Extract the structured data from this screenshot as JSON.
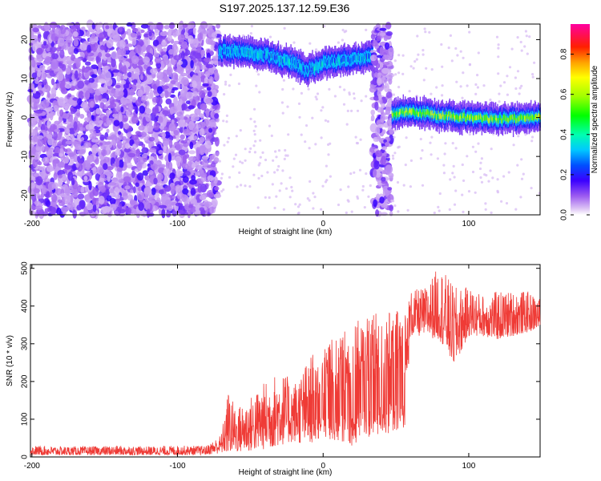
{
  "title": "S197.2025.137.12.59.E36",
  "chart_data": [
    {
      "type": "heatmap",
      "xlabel": "Height of straight line (km)",
      "ylabel": "Frequency (Hz)",
      "xlim": [
        -201,
        149
      ],
      "ylim": [
        -25,
        24
      ],
      "xticks": [
        -200,
        -100,
        0,
        100
      ],
      "yticks": [
        -20,
        -10,
        0,
        10,
        20
      ],
      "colorbar": {
        "label": "Normalized spectral amplitude",
        "range": [
          0,
          0.95
        ],
        "ticks": [
          0.0,
          0.2,
          0.4,
          0.6,
          0.8
        ]
      },
      "regions": [
        {
          "x": [
            -201,
            -72
          ],
          "description_value": "noise",
          "amplitude": 0.05
        },
        {
          "x": [
            -72,
            34
          ],
          "frequency_track": [
            [
              -72,
              17
            ],
            [
              -60,
              17
            ],
            [
              -40,
              16
            ],
            [
              -20,
              14
            ],
            [
              -12,
              12
            ],
            [
              0,
              14
            ],
            [
              20,
              15
            ],
            [
              35,
              16
            ]
          ],
          "amplitude": 0.3
        },
        {
          "x": [
            34,
            47
          ],
          "description_value": "noise",
          "amplitude": 0.05
        },
        {
          "x": [
            47,
            149
          ],
          "frequency_track": [
            [
              47,
              1
            ],
            [
              60,
              1.5
            ],
            [
              80,
              0.5
            ],
            [
              100,
              0
            ],
            [
              120,
              -0.5
            ],
            [
              149,
              0
            ]
          ],
          "amplitude": 0.6
        }
      ]
    },
    {
      "type": "line",
      "xlabel": "Height of straight line (km)",
      "ylabel": "SNR (10 * v/v)",
      "xlim": [
        -201,
        149
      ],
      "ylim": [
        0,
        510
      ],
      "xticks": [
        -200,
        -100,
        0,
        100
      ],
      "yticks": [
        0,
        100,
        200,
        300,
        400,
        500
      ],
      "color": "#ef3b36",
      "series": [
        {
          "x": [
            -200,
            -180,
            -160,
            -140,
            -120,
            -100,
            -80,
            -70,
            -65,
            -60,
            -50,
            -40,
            -30,
            -20,
            -10,
            0,
            10,
            20,
            30,
            40,
            50,
            56,
            60,
            70,
            80,
            90,
            100,
            110,
            120,
            130,
            140,
            149
          ],
          "y_low": [
            5,
            5,
            5,
            5,
            5,
            5,
            6,
            10,
            10,
            12,
            15,
            20,
            30,
            40,
            30,
            45,
            40,
            30,
            50,
            60,
            60,
            80,
            320,
            320,
            310,
            240,
            320,
            320,
            310,
            320,
            330,
            340
          ],
          "y_high": [
            30,
            28,
            28,
            30,
            28,
            30,
            30,
            60,
            180,
            130,
            160,
            200,
            230,
            200,
            260,
            300,
            320,
            350,
            380,
            380,
            390,
            390,
            440,
            450,
            510,
            450,
            450,
            430,
            440,
            440,
            440,
            420
          ]
        }
      ]
    }
  ]
}
